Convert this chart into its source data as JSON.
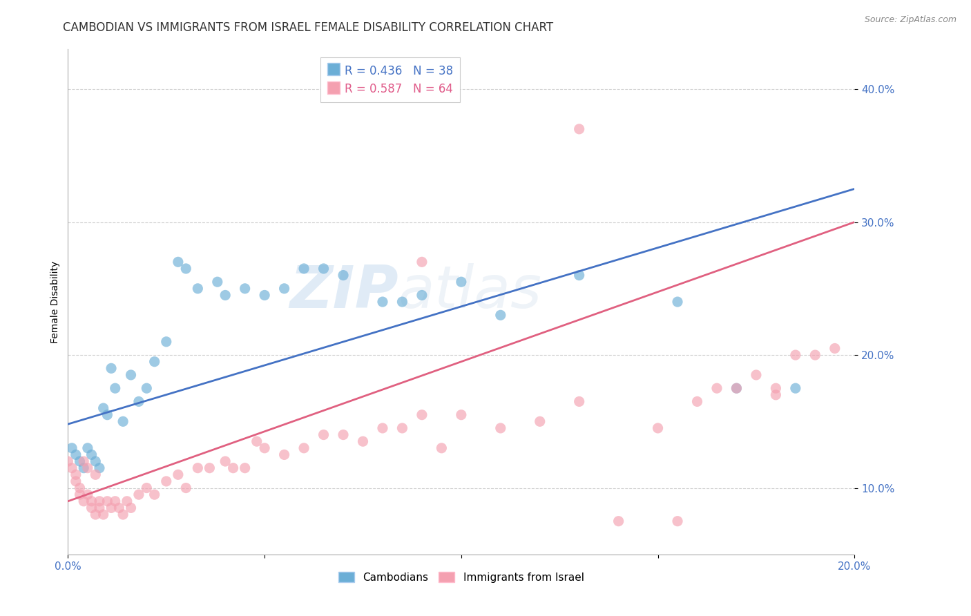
{
  "title": "CAMBODIAN VS IMMIGRANTS FROM ISRAEL FEMALE DISABILITY CORRELATION CHART",
  "source": "Source: ZipAtlas.com",
  "ylabel": "Female Disability",
  "xlim": [
    0.0,
    0.2
  ],
  "ylim": [
    0.05,
    0.43
  ],
  "yticks": [
    0.1,
    0.2,
    0.3,
    0.4
  ],
  "ytick_labels": [
    "10.0%",
    "20.0%",
    "30.0%",
    "40.0%"
  ],
  "xticks": [
    0.0,
    0.05,
    0.1,
    0.15,
    0.2
  ],
  "xtick_labels": [
    "0.0%",
    "",
    "",
    "",
    "20.0%"
  ],
  "legend_r_cambodian": "R = 0.436",
  "legend_n_cambodian": "N = 38",
  "legend_r_israel": "R = 0.587",
  "legend_n_israel": "N = 64",
  "cambodian_color": "#6baed6",
  "israel_color": "#f4a0b0",
  "line_cambodian_color": "#4472c4",
  "line_israel_color": "#e06080",
  "watermark_zip": "ZIP",
  "watermark_atlas": "atlas",
  "title_fontsize": 12,
  "axis_label_fontsize": 10,
  "tick_fontsize": 11,
  "cambodian_x": [
    0.001,
    0.002,
    0.003,
    0.004,
    0.005,
    0.006,
    0.007,
    0.008,
    0.009,
    0.01,
    0.011,
    0.012,
    0.014,
    0.016,
    0.018,
    0.02,
    0.022,
    0.025,
    0.028,
    0.03,
    0.033,
    0.038,
    0.04,
    0.045,
    0.05,
    0.055,
    0.06,
    0.065,
    0.07,
    0.08,
    0.085,
    0.09,
    0.1,
    0.11,
    0.13,
    0.155,
    0.17,
    0.185
  ],
  "cambodian_y": [
    0.13,
    0.125,
    0.12,
    0.115,
    0.13,
    0.125,
    0.12,
    0.115,
    0.16,
    0.155,
    0.19,
    0.175,
    0.15,
    0.185,
    0.165,
    0.175,
    0.195,
    0.21,
    0.27,
    0.265,
    0.25,
    0.255,
    0.245,
    0.25,
    0.245,
    0.25,
    0.265,
    0.265,
    0.26,
    0.24,
    0.24,
    0.245,
    0.255,
    0.23,
    0.26,
    0.24,
    0.175,
    0.175
  ],
  "israel_x": [
    0.0,
    0.001,
    0.002,
    0.002,
    0.003,
    0.003,
    0.004,
    0.004,
    0.005,
    0.005,
    0.006,
    0.006,
    0.007,
    0.007,
    0.008,
    0.008,
    0.009,
    0.01,
    0.011,
    0.012,
    0.013,
    0.014,
    0.015,
    0.016,
    0.018,
    0.02,
    0.022,
    0.025,
    0.028,
    0.03,
    0.033,
    0.036,
    0.04,
    0.042,
    0.045,
    0.048,
    0.05,
    0.055,
    0.06,
    0.065,
    0.07,
    0.075,
    0.08,
    0.085,
    0.09,
    0.095,
    0.1,
    0.11,
    0.12,
    0.13,
    0.14,
    0.15,
    0.16,
    0.165,
    0.17,
    0.175,
    0.18,
    0.185,
    0.19,
    0.195,
    0.155,
    0.09,
    0.13,
    0.18
  ],
  "israel_y": [
    0.12,
    0.115,
    0.11,
    0.105,
    0.1,
    0.095,
    0.09,
    0.12,
    0.115,
    0.095,
    0.09,
    0.085,
    0.08,
    0.11,
    0.09,
    0.085,
    0.08,
    0.09,
    0.085,
    0.09,
    0.085,
    0.08,
    0.09,
    0.085,
    0.095,
    0.1,
    0.095,
    0.105,
    0.11,
    0.1,
    0.115,
    0.115,
    0.12,
    0.115,
    0.115,
    0.135,
    0.13,
    0.125,
    0.13,
    0.14,
    0.14,
    0.135,
    0.145,
    0.145,
    0.155,
    0.13,
    0.155,
    0.145,
    0.15,
    0.165,
    0.075,
    0.145,
    0.165,
    0.175,
    0.175,
    0.185,
    0.175,
    0.2,
    0.2,
    0.205,
    0.075,
    0.27,
    0.37,
    0.17
  ],
  "line_cambodian": {
    "x0": 0.0,
    "y0": 0.148,
    "x1": 0.2,
    "y1": 0.325
  },
  "line_israel": {
    "x0": 0.0,
    "y0": 0.09,
    "x1": 0.2,
    "y1": 0.3
  }
}
